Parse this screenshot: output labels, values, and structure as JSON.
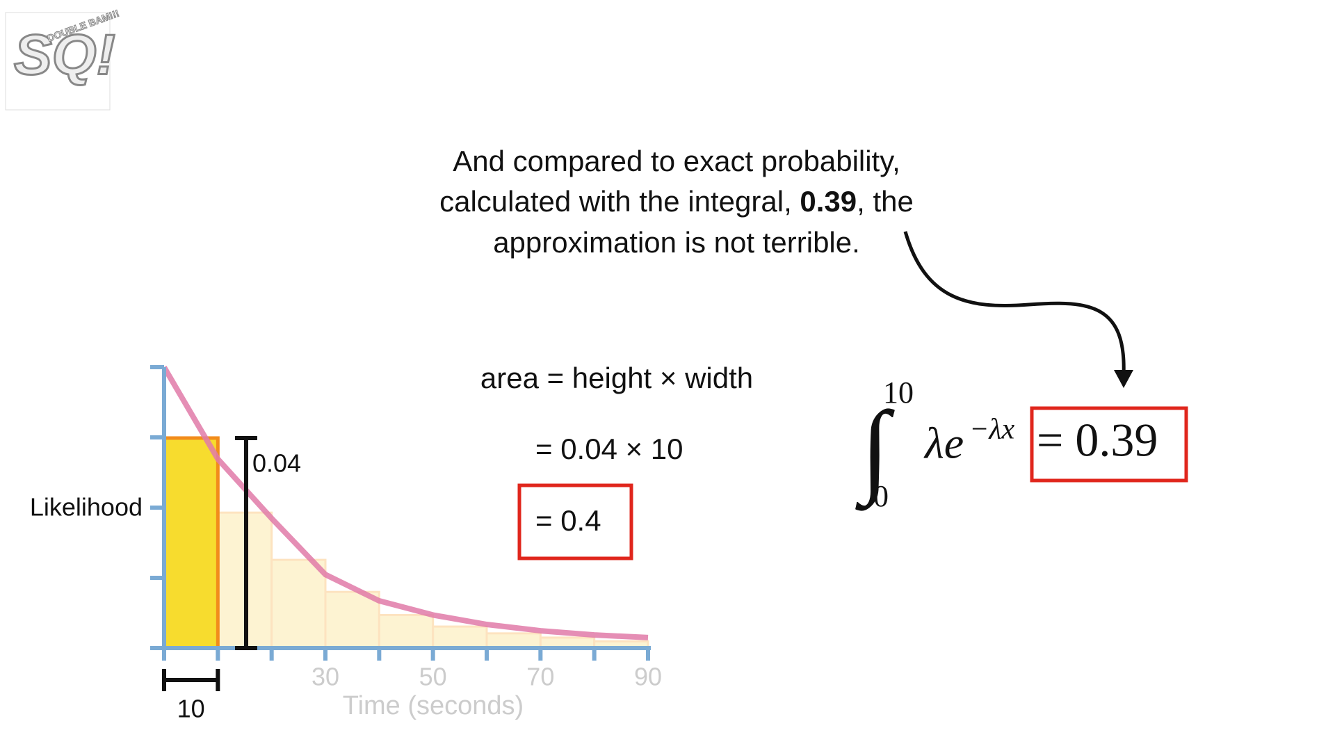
{
  "logo": {
    "letters": "SQ!",
    "tag": "DOUBLE BAM!!!"
  },
  "caption": {
    "line1": "And compared to exact probability,",
    "line2_start": "calculated with the integral, ",
    "line2_bold": "0.39",
    "line2_end": ", the",
    "line3": "approximation is not terrible."
  },
  "formula": {
    "area": "area = height × width",
    "product": "= 0.04 × 10",
    "result": "= 0.4"
  },
  "integral": {
    "upper": "10",
    "lower": "0",
    "integrand": "λe",
    "exponent": "−λx",
    "result": "= 0.39"
  },
  "chart_data": {
    "type": "histogram",
    "xlabel": "Time (seconds)",
    "ylabel": "Likelihood",
    "bins": [
      0,
      10,
      20,
      30,
      40,
      50,
      60,
      70,
      80,
      90
    ],
    "values": [
      0.04,
      0.0258,
      0.0168,
      0.0107,
      0.0063,
      0.0041,
      0.0028,
      0.002,
      0.0013
    ],
    "colors": [
      "#f7dc2e",
      "#fdf3d2",
      "#fdf3d2",
      "#fdf3d2",
      "#fdf3d2",
      "#fdf3d2",
      "#fdf3d2",
      "#fdf3d2",
      "#fdf3d2"
    ],
    "curve": {
      "x": [
        0,
        10,
        20,
        30,
        40,
        50,
        60,
        70,
        80,
        90
      ],
      "values": [
        0.0535,
        0.036,
        0.0247,
        0.014,
        0.009,
        0.0063,
        0.0045,
        0.0033,
        0.0025,
        0.002
      ],
      "color": "#e07aa8"
    },
    "xlim": [
      0,
      90
    ],
    "ylim": [
      0,
      0.0535
    ],
    "xticks": [
      30,
      50,
      70,
      90
    ],
    "width_label": "10",
    "height_label": "0.04",
    "axis_color": "#7aaad4"
  }
}
